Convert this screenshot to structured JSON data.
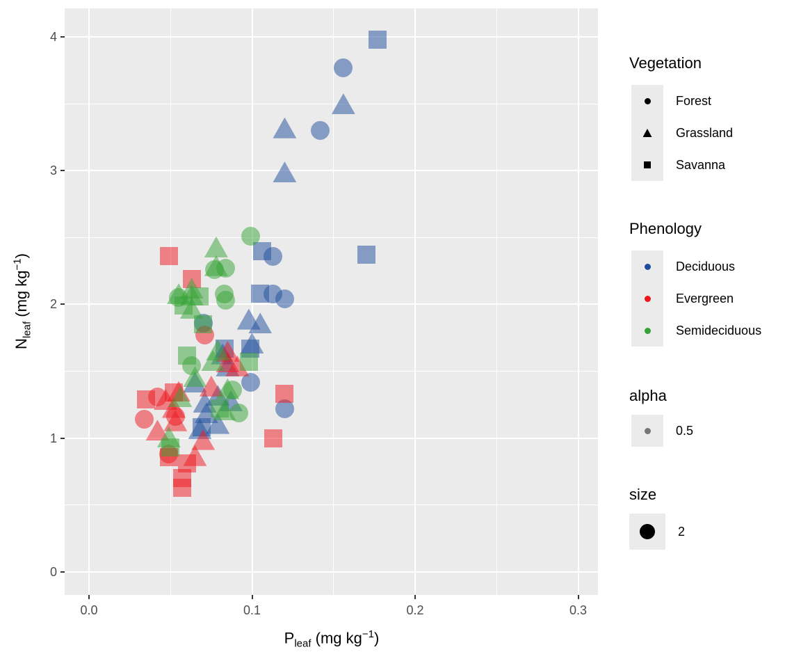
{
  "chart_data": {
    "type": "scatter",
    "title": "",
    "xlabel": {
      "prefix": "P",
      "sub": "leaf",
      "mid": " (mg kg",
      "sup": "−1",
      "suffix": ")"
    },
    "ylabel": {
      "prefix": "N",
      "sub": "leaf",
      "mid": " (mg kg",
      "sup": "−1",
      "suffix": ")"
    },
    "x_tick_labels": [
      "0.0",
      "0.1",
      "0.2",
      "0.3"
    ],
    "x_tick_values": [
      0,
      0.1,
      0.2,
      0.3
    ],
    "y_tick_labels": [
      "0",
      "1",
      "2",
      "3",
      "4"
    ],
    "y_tick_values": [
      0,
      1,
      2,
      3,
      4
    ],
    "x_minor": [
      0.05,
      0.15,
      0.25
    ],
    "y_minor": [
      0.5,
      1.5,
      2.5,
      3.5
    ],
    "xlim": [
      -0.01493,
      0.31215
    ],
    "ylim": [
      -0.1717,
      4.2133
    ],
    "grid": true,
    "legend_position": "right",
    "panel_bg": "#EBEBEB",
    "alpha": 0.5,
    "colors": {
      "Deciduous": "#1E4D9B",
      "Evergreen": "#EF161E",
      "Semideciduous": "#35A335"
    },
    "shapes": {
      "Forest": "circle",
      "Grassland": "triangle",
      "Savanna": "square"
    },
    "points": [
      [
        0.177,
        3.98,
        "Savanna",
        "Deciduous"
      ],
      [
        0.156,
        3.77,
        "Forest",
        "Deciduous"
      ],
      [
        0.156,
        3.5,
        "Grassland",
        "Deciduous"
      ],
      [
        0.12,
        3.32,
        "Grassland",
        "Deciduous"
      ],
      [
        0.142,
        3.3,
        "Forest",
        "Deciduous"
      ],
      [
        0.12,
        2.99,
        "Grassland",
        "Deciduous"
      ],
      [
        0.106,
        2.4,
        "Savanna",
        "Deciduous"
      ],
      [
        0.113,
        2.36,
        "Forest",
        "Deciduous"
      ],
      [
        0.17,
        2.37,
        "Savanna",
        "Deciduous"
      ],
      [
        0.105,
        2.08,
        "Savanna",
        "Deciduous"
      ],
      [
        0.113,
        2.08,
        "Forest",
        "Deciduous"
      ],
      [
        0.12,
        2.04,
        "Forest",
        "Deciduous"
      ],
      [
        0.098,
        1.89,
        "Grassland",
        "Deciduous"
      ],
      [
        0.105,
        1.86,
        "Grassland",
        "Deciduous"
      ],
      [
        0.07,
        1.86,
        "Forest",
        "Deciduous"
      ],
      [
        0.099,
        1.67,
        "Savanna",
        "Deciduous"
      ],
      [
        0.1,
        1.71,
        "Grassland",
        "Deciduous"
      ],
      [
        0.083,
        1.67,
        "Savanna",
        "Deciduous"
      ],
      [
        0.082,
        1.63,
        "Grassland",
        "Deciduous"
      ],
      [
        0.085,
        1.54,
        "Grassland",
        "Deciduous"
      ],
      [
        0.099,
        1.42,
        "Forest",
        "Deciduous"
      ],
      [
        0.065,
        1.42,
        "Grassland",
        "Deciduous"
      ],
      [
        0.079,
        1.32,
        "Grassland",
        "Deciduous"
      ],
      [
        0.087,
        1.28,
        "Grassland",
        "Deciduous"
      ],
      [
        0.071,
        1.27,
        "Grassland",
        "Deciduous"
      ],
      [
        0.072,
        1.19,
        "Grassland",
        "Deciduous"
      ],
      [
        0.079,
        1.11,
        "Grassland",
        "Deciduous"
      ],
      [
        0.069,
        1.08,
        "Savanna",
        "Deciduous"
      ],
      [
        0.068,
        1.07,
        "Grassland",
        "Deciduous"
      ],
      [
        0.12,
        1.22,
        "Forest",
        "Deciduous"
      ],
      [
        0.049,
        2.36,
        "Savanna",
        "Evergreen"
      ],
      [
        0.063,
        2.19,
        "Savanna",
        "Evergreen"
      ],
      [
        0.071,
        1.77,
        "Forest",
        "Evergreen"
      ],
      [
        0.085,
        1.65,
        "Grassland",
        "Evergreen"
      ],
      [
        0.085,
        1.57,
        "Grassland",
        "Evergreen"
      ],
      [
        0.091,
        1.54,
        "Grassland",
        "Evergreen"
      ],
      [
        0.075,
        1.39,
        "Grassland",
        "Evergreen"
      ],
      [
        0.055,
        1.35,
        "Grassland",
        "Evergreen"
      ],
      [
        0.052,
        1.34,
        "Savanna",
        "Evergreen"
      ],
      [
        0.042,
        1.31,
        "Forest",
        "Evergreen"
      ],
      [
        0.047,
        1.29,
        "Grassland",
        "Evergreen"
      ],
      [
        0.052,
        1.23,
        "Grassland",
        "Evergreen"
      ],
      [
        0.035,
        1.29,
        "Savanna",
        "Evergreen"
      ],
      [
        0.034,
        1.14,
        "Forest",
        "Evergreen"
      ],
      [
        0.042,
        1.06,
        "Grassland",
        "Evergreen"
      ],
      [
        0.053,
        1.13,
        "Grassland",
        "Evergreen"
      ],
      [
        0.053,
        1.16,
        "Forest",
        "Evergreen"
      ],
      [
        0.07,
        0.99,
        "Grassland",
        "Evergreen"
      ],
      [
        0.049,
        0.88,
        "Forest",
        "Evergreen"
      ],
      [
        0.049,
        0.86,
        "Savanna",
        "Evergreen"
      ],
      [
        0.065,
        0.87,
        "Grassland",
        "Evergreen"
      ],
      [
        0.06,
        0.81,
        "Savanna",
        "Evergreen"
      ],
      [
        0.057,
        0.7,
        "Savanna",
        "Evergreen"
      ],
      [
        0.057,
        0.63,
        "Savanna",
        "Evergreen"
      ],
      [
        0.12,
        1.33,
        "Savanna",
        "Evergreen"
      ],
      [
        0.113,
        1.0,
        "Savanna",
        "Evergreen"
      ],
      [
        0.099,
        2.51,
        "Forest",
        "Semideciduous"
      ],
      [
        0.078,
        2.43,
        "Grassland",
        "Semideciduous"
      ],
      [
        0.078,
        2.29,
        "Grassland",
        "Semideciduous"
      ],
      [
        0.077,
        2.26,
        "Forest",
        "Semideciduous"
      ],
      [
        0.084,
        2.27,
        "Forest",
        "Semideciduous"
      ],
      [
        0.063,
        2.12,
        "Grassland",
        "Semideciduous"
      ],
      [
        0.063,
        2.07,
        "Grassland",
        "Semideciduous"
      ],
      [
        0.055,
        2.08,
        "Grassland",
        "Semideciduous"
      ],
      [
        0.055,
        2.05,
        "Forest",
        "Semideciduous"
      ],
      [
        0.068,
        2.06,
        "Savanna",
        "Semideciduous"
      ],
      [
        0.058,
        1.99,
        "Savanna",
        "Semideciduous"
      ],
      [
        0.063,
        1.97,
        "Grassland",
        "Semideciduous"
      ],
      [
        0.083,
        2.08,
        "Forest",
        "Semideciduous"
      ],
      [
        0.084,
        2.03,
        "Forest",
        "Semideciduous"
      ],
      [
        0.07,
        1.85,
        "Savanna",
        "Semideciduous"
      ],
      [
        0.06,
        1.62,
        "Savanna",
        "Semideciduous"
      ],
      [
        0.063,
        1.54,
        "Forest",
        "Semideciduous"
      ],
      [
        0.065,
        1.46,
        "Grassland",
        "Semideciduous"
      ],
      [
        0.076,
        1.58,
        "Grassland",
        "Semideciduous"
      ],
      [
        0.079,
        1.66,
        "Grassland",
        "Semideciduous"
      ],
      [
        0.098,
        1.57,
        "Savanna",
        "Semideciduous"
      ],
      [
        0.088,
        1.36,
        "Forest",
        "Semideciduous"
      ],
      [
        0.085,
        1.37,
        "Grassland",
        "Semideciduous"
      ],
      [
        0.083,
        1.21,
        "Grassland",
        "Semideciduous"
      ],
      [
        0.08,
        1.22,
        "Savanna",
        "Semideciduous"
      ],
      [
        0.092,
        1.19,
        "Forest",
        "Semideciduous"
      ],
      [
        0.049,
        1.01,
        "Grassland",
        "Semideciduous"
      ],
      [
        0.05,
        0.93,
        "Savanna",
        "Semideciduous"
      ],
      [
        0.056,
        1.31,
        "Grassland",
        "Semideciduous"
      ]
    ]
  },
  "legend": {
    "vegetation": {
      "title": "Vegetation",
      "items": [
        {
          "label": "Forest",
          "shape": "circle"
        },
        {
          "label": "Grassland",
          "shape": "triangle"
        },
        {
          "label": "Savanna",
          "shape": "square"
        }
      ]
    },
    "phenology": {
      "title": "Phenology",
      "items": [
        {
          "label": "Deciduous",
          "color": "#1E4D9B"
        },
        {
          "label": "Evergreen",
          "color": "#EF161E"
        },
        {
          "label": "Semideciduous",
          "color": "#35A335"
        }
      ]
    },
    "alpha": {
      "title": "alpha",
      "label": "0.5"
    },
    "size": {
      "title": "size",
      "label": "2"
    }
  }
}
